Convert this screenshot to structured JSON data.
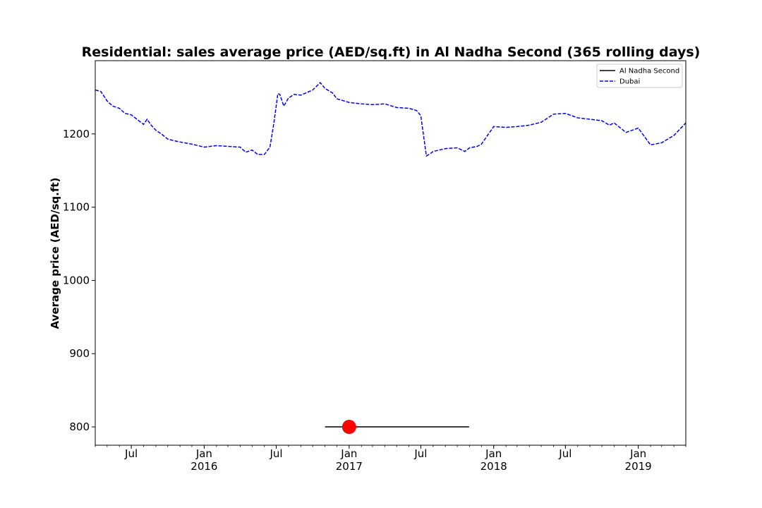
{
  "chart_data": {
    "type": "line",
    "title": "Residential: sales average price (AED/sq.ft) in Al Nadha Second (365 rolling days)",
    "xlabel": "",
    "ylabel": "Average price (AED/sq.ft)",
    "ylim": [
      775,
      1300
    ],
    "xlim": [
      "2015-04-01",
      "2019-05-01"
    ],
    "grid": false,
    "legend_position": "top-right",
    "y_ticks": [
      "800",
      "900",
      "1000",
      "1100",
      "1200"
    ],
    "x_ticks": [
      {
        "date": "2015-07-01",
        "label": "Jul",
        "year": ""
      },
      {
        "date": "2016-01-01",
        "label": "Jan",
        "year": "2016"
      },
      {
        "date": "2016-07-01",
        "label": "Jul",
        "year": ""
      },
      {
        "date": "2017-01-01",
        "label": "Jan",
        "year": "2017"
      },
      {
        "date": "2017-07-01",
        "label": "Jul",
        "year": ""
      },
      {
        "date": "2018-01-01",
        "label": "Jan",
        "year": "2018"
      },
      {
        "date": "2018-07-01",
        "label": "Jul",
        "year": ""
      },
      {
        "date": "2019-01-01",
        "label": "Jan",
        "year": "2019"
      }
    ],
    "series": [
      {
        "name": "Al Nadha Second",
        "color": "#000000",
        "style": "solid",
        "x": [
          "2016-11-01",
          "2017-10-31"
        ],
        "y": [
          800,
          800
        ]
      },
      {
        "name": "Dubai",
        "color": "#0000ff",
        "style": "dashed",
        "x": [
          "2015-04-01",
          "2015-04-15",
          "2015-05-01",
          "2015-05-15",
          "2015-06-01",
          "2015-06-15",
          "2015-07-01",
          "2015-07-15",
          "2015-08-01",
          "2015-08-10",
          "2015-08-20",
          "2015-09-01",
          "2015-09-15",
          "2015-10-01",
          "2015-10-15",
          "2015-11-01",
          "2015-12-01",
          "2016-01-01",
          "2016-02-01",
          "2016-03-01",
          "2016-04-01",
          "2016-04-15",
          "2016-05-01",
          "2016-05-15",
          "2016-06-01",
          "2016-06-15",
          "2016-06-25",
          "2016-07-05",
          "2016-07-10",
          "2016-07-20",
          "2016-08-01",
          "2016-08-15",
          "2016-09-01",
          "2016-10-01",
          "2016-10-20",
          "2016-11-01",
          "2016-11-20",
          "2016-12-01",
          "2017-01-01",
          "2017-02-01",
          "2017-03-01",
          "2017-04-01",
          "2017-05-01",
          "2017-06-01",
          "2017-06-20",
          "2017-07-01",
          "2017-07-15",
          "2017-07-25",
          "2017-08-01",
          "2017-09-01",
          "2017-10-01",
          "2017-10-20",
          "2017-11-01",
          "2017-11-20",
          "2017-12-01",
          "2018-01-01",
          "2018-02-01",
          "2018-03-01",
          "2018-04-01",
          "2018-05-01",
          "2018-06-01",
          "2018-07-01",
          "2018-08-01",
          "2018-09-01",
          "2018-10-01",
          "2018-10-20",
          "2018-11-01",
          "2018-12-01",
          "2019-01-01",
          "2019-02-01",
          "2019-03-01",
          "2019-04-01",
          "2019-05-01"
        ],
        "y": [
          1260,
          1258,
          1245,
          1238,
          1235,
          1228,
          1226,
          1220,
          1213,
          1220,
          1212,
          1205,
          1200,
          1193,
          1191,
          1189,
          1186,
          1182,
          1184,
          1183,
          1182,
          1175,
          1178,
          1172,
          1172,
          1182,
          1215,
          1255,
          1254,
          1238,
          1249,
          1254,
          1253,
          1260,
          1270,
          1262,
          1256,
          1248,
          1243,
          1241,
          1240,
          1241,
          1236,
          1235,
          1232,
          1225,
          1170,
          1173,
          1176,
          1180,
          1181,
          1176,
          1181,
          1183,
          1186,
          1210,
          1209,
          1210,
          1212,
          1216,
          1227,
          1228,
          1222,
          1220,
          1218,
          1212,
          1215,
          1202,
          1208,
          1185,
          1188,
          1198,
          1215
        ]
      }
    ]
  }
}
